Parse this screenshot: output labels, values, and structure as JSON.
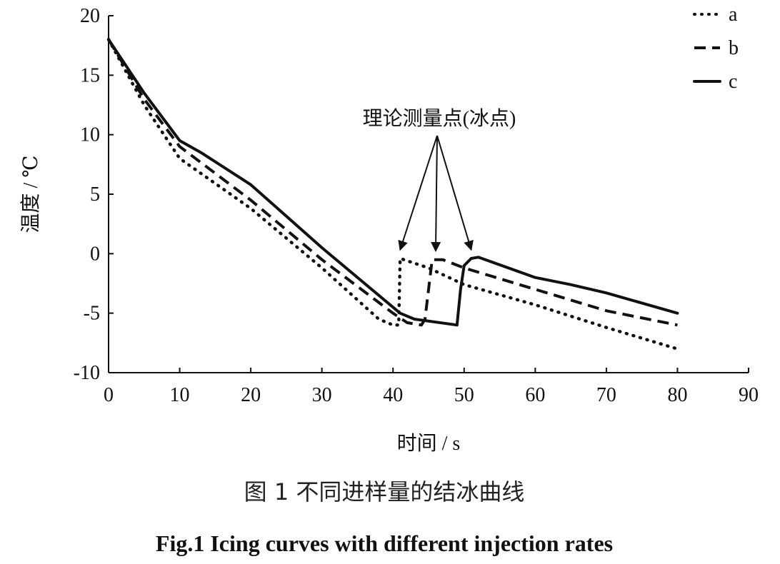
{
  "chart_data": {
    "type": "line",
    "title": "",
    "xlabel": "时间 / s",
    "ylabel": "温度 / ℃",
    "xlim": [
      0,
      90
    ],
    "ylim": [
      -10,
      20
    ],
    "xticks": [
      0,
      10,
      20,
      30,
      40,
      50,
      60,
      70,
      80,
      90
    ],
    "yticks": [
      -10,
      -5,
      0,
      5,
      10,
      15,
      20
    ],
    "grid": false,
    "legend_position": "top-right",
    "series": [
      {
        "name": "a",
        "style": "dotted",
        "color": "#111111",
        "x": [
          0,
          5,
          10,
          20,
          30,
          38,
          40,
          40.8,
          41,
          45,
          50,
          60,
          70,
          80
        ],
        "y": [
          18,
          12.5,
          8,
          3.8,
          -1.2,
          -5.5,
          -6,
          -6,
          -0.4,
          -1.2,
          -2.6,
          -4.3,
          -6.2,
          -8
        ]
      },
      {
        "name": "b",
        "style": "dashed",
        "color": "#111111",
        "x": [
          0,
          5,
          10,
          20,
          30,
          40,
          42,
          44,
          44.5,
          45.5,
          47,
          50,
          60,
          70,
          80
        ],
        "y": [
          18,
          13,
          9,
          4.5,
          -0.5,
          -5,
          -5.8,
          -6,
          -5.5,
          -0.5,
          -0.5,
          -1.2,
          -3,
          -4.8,
          -6
        ]
      },
      {
        "name": "c",
        "style": "solid",
        "color": "#111111",
        "x": [
          0,
          5,
          10,
          13,
          20,
          30,
          41,
          43,
          49,
          49.5,
          50,
          51,
          52,
          60,
          65,
          70,
          80
        ],
        "y": [
          18,
          13.5,
          9.5,
          8.5,
          5.8,
          0.5,
          -5,
          -5.5,
          -6,
          -3,
          -1,
          -0.4,
          -0.3,
          -2,
          -2.6,
          -3.3,
          -5
        ]
      }
    ],
    "annotations": [
      {
        "text": "理论测量点(冰点)",
        "points": [
          [
            41,
            -0.4
          ],
          [
            46,
            -0.5
          ],
          [
            51,
            -0.4
          ]
        ]
      }
    ]
  },
  "caption": {
    "zh": "图 1  不同进样量的结冰曲线",
    "en": "Fig.1 Icing curves with different injection rates"
  }
}
